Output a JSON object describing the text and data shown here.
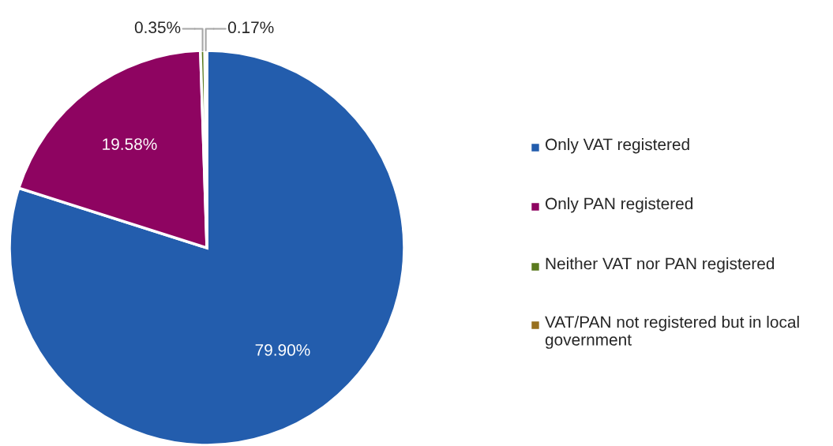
{
  "chart_data": {
    "type": "pie",
    "categories": [
      "Only VAT registered",
      "Only PAN registered",
      "Neither VAT nor PAN registered",
      "VAT/PAN not registered but in local government"
    ],
    "values": [
      79.9,
      19.58,
      0.35,
      0.17
    ],
    "colors": [
      "#235dad",
      "#8e0461",
      "#5a7a1e",
      "#98701f"
    ],
    "value_labels": [
      "79.90%",
      "19.58%",
      "0.35%",
      "0.17%"
    ],
    "legend": "right"
  }
}
